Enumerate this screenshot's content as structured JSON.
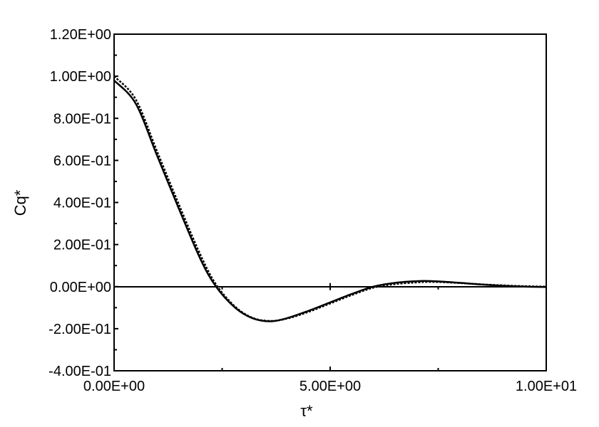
{
  "chart_data": {
    "type": "line",
    "title": "",
    "xlabel": "τ*",
    "ylabel": "Cq*",
    "xlim": [
      0,
      10
    ],
    "ylim": [
      -0.4,
      1.2
    ],
    "x_ticks": [
      0,
      5,
      10
    ],
    "x_tick_labels": [
      "0.00E+00",
      "5.00E+00",
      "1.00E+01"
    ],
    "y_ticks": [
      -0.4,
      -0.2,
      0,
      0.2,
      0.4,
      0.6,
      0.8,
      1.0,
      1.2
    ],
    "y_tick_labels": [
      "-4.00E-01",
      "-2.00E-01",
      "0.00E+00",
      "2.00E-01",
      "4.00E-01",
      "6.00E-01",
      "8.00E-01",
      "1.00E+00",
      "1.20E+00"
    ],
    "grid": false,
    "legend": "none",
    "x": [
      0,
      0.5,
      1,
      1.5,
      2,
      2.36,
      2.8,
      3.2,
      3.6,
      4.0,
      4.5,
      5,
      5.5,
      6,
      6.5,
      7,
      7.2,
      7.5,
      8,
      8.5,
      9,
      9.5,
      10
    ],
    "series": [
      {
        "style": "solid",
        "color": "#000000",
        "values": [
          0.98,
          0.87,
          0.62,
          0.37,
          0.13,
          0,
          -0.1,
          -0.15,
          -0.165,
          -0.15,
          -0.115,
          -0.075,
          -0.035,
          0,
          0.018,
          0.026,
          0.027,
          0.025,
          0.018,
          0.01,
          0.004,
          0,
          -0.002
        ]
      },
      {
        "style": "dashed",
        "color": "#000000",
        "values": [
          1.0,
          0.89,
          0.64,
          0.39,
          0.15,
          0.01,
          -0.095,
          -0.148,
          -0.163,
          -0.152,
          -0.12,
          -0.08,
          -0.04,
          -0.005,
          0.012,
          0.02,
          0.022,
          0.022,
          0.017,
          0.011,
          0.006,
          0.002,
          0
        ]
      }
    ]
  }
}
